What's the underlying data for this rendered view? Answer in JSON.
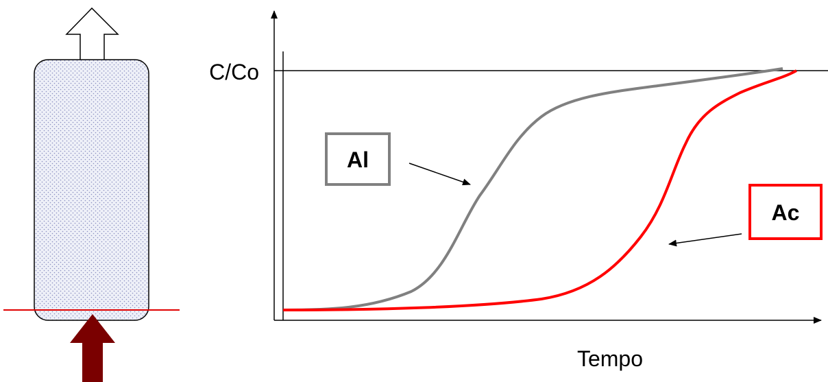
{
  "axes": {
    "y_label": "C/Co",
    "x_label": "Tempo"
  },
  "curves": [
    {
      "label": "Al"
    },
    {
      "label": "Ac"
    }
  ]
}
